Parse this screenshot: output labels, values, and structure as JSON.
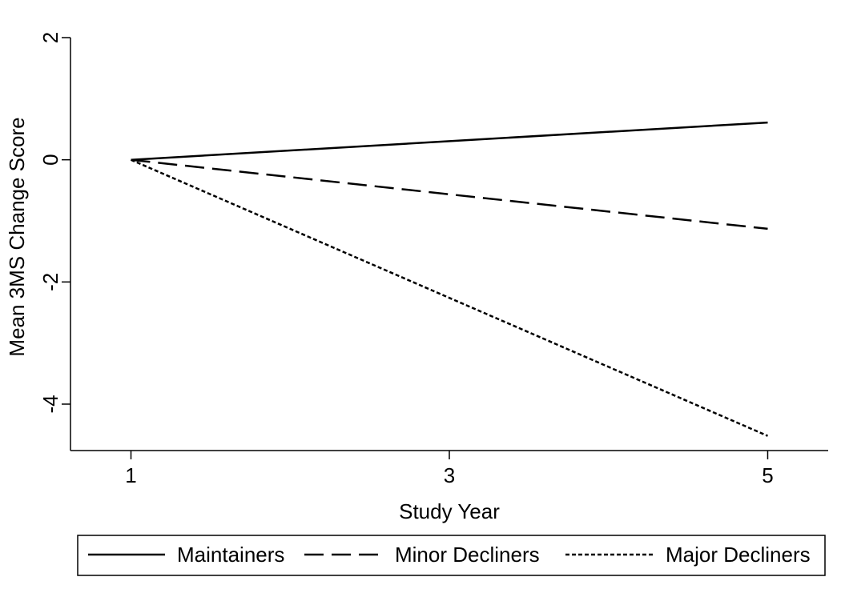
{
  "chart_data": {
    "type": "line",
    "title": "",
    "xlabel": "Study Year",
    "ylabel": "Mean 3MS Change Score",
    "x": [
      1,
      5
    ],
    "xticks": [
      1,
      3,
      5
    ],
    "yticks": [
      2,
      0,
      -2,
      -4
    ],
    "xlim": [
      0.62,
      5.38
    ],
    "ylim": [
      -4.76,
      2.0
    ],
    "grid": false,
    "legend_position": "bottom",
    "series": [
      {
        "name": "Maintainers",
        "values": [
          0,
          0.61
        ],
        "line_style": "solid",
        "color": "#000000"
      },
      {
        "name": "Minor Decliners",
        "values": [
          0,
          -1.13
        ],
        "line_style": "dashed",
        "color": "#000000"
      },
      {
        "name": "Major Decliners",
        "values": [
          0,
          -4.52
        ],
        "line_style": "dotted",
        "color": "#000000"
      }
    ]
  }
}
